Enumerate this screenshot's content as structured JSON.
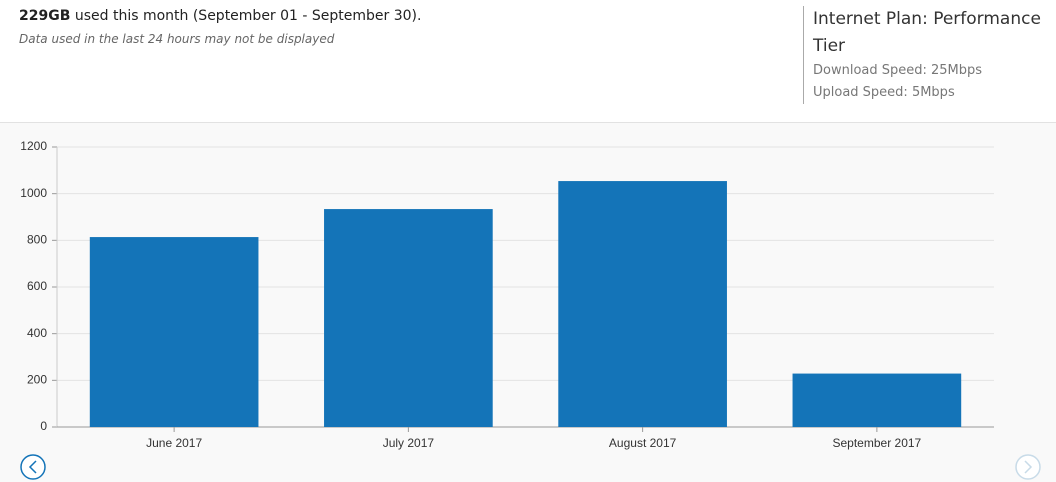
{
  "header": {
    "usage_amount": "229GB",
    "usage_text": "used this month (September 01 - September 30).",
    "note": "Data used in the last 24 hours may not be displayed"
  },
  "plan": {
    "title": "Internet Plan: Performance Tier",
    "download": "Download Speed: 25Mbps",
    "upload": "Upload Speed: 5Mbps"
  },
  "chart_data": {
    "type": "bar",
    "categories": [
      "June 2017",
      "July 2017",
      "August 2017",
      "September 2017"
    ],
    "values": [
      814,
      934,
      1054,
      229
    ],
    "color": "#1474b8",
    "ylim": [
      0,
      1200
    ],
    "yticks": [
      0,
      200,
      400,
      600,
      800,
      1000,
      1200
    ],
    "grid": true
  }
}
